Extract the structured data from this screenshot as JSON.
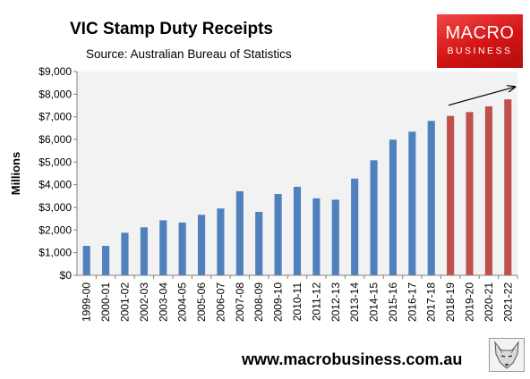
{
  "header": {
    "title": "VIC Stamp Duty Receipts",
    "subtitle": "Source: Australian Bureau of Statistics"
  },
  "logo": {
    "line1": "MACRO",
    "line2": "BUSINESS",
    "color": "#d81b1b"
  },
  "footer": {
    "website": "www.macrobusiness.com.au"
  },
  "colors": {
    "historical": "#4f81bd",
    "projected": "#c0504d",
    "plot_bg": "#f2f2f2"
  },
  "chart_data": {
    "type": "bar",
    "title": "VIC Stamp Duty Receipts",
    "subtitle": "Source: Australian Bureau of Statistics",
    "xlabel": "",
    "ylabel": "Millions",
    "ylim": [
      0,
      9000
    ],
    "yticks": [
      0,
      1000,
      2000,
      3000,
      4000,
      5000,
      6000,
      7000,
      8000,
      9000
    ],
    "ytick_labels": [
      "$0",
      "$1,000",
      "$2,000",
      "$3,000",
      "$4,000",
      "$5,000",
      "$6,000",
      "$7,000",
      "$8,000",
      "$9,000"
    ],
    "categories": [
      "1999-00",
      "2000-01",
      "2001-02",
      "2002-03",
      "2003-04",
      "2004-05",
      "2005-06",
      "2006-07",
      "2007-08",
      "2008-09",
      "2009-10",
      "2010-11",
      "2011-12",
      "2012-13",
      "2013-14",
      "2014-15",
      "2015-16",
      "2016-17",
      "2017-18",
      "2018-19",
      "2019-20",
      "2020-21",
      "2021-22"
    ],
    "values": [
      1300,
      1300,
      1880,
      2120,
      2430,
      2330,
      2670,
      2950,
      3710,
      2800,
      3590,
      3910,
      3400,
      3340,
      4270,
      5080,
      5990,
      6340,
      6820,
      7040,
      7210,
      7460,
      7770
    ],
    "projected_from_index": 19,
    "grid": false,
    "legend": "none",
    "annotations": [
      {
        "type": "arrow",
        "from_category": "2018-19",
        "to_category": "2021-22",
        "direction": "upward trend"
      }
    ]
  }
}
